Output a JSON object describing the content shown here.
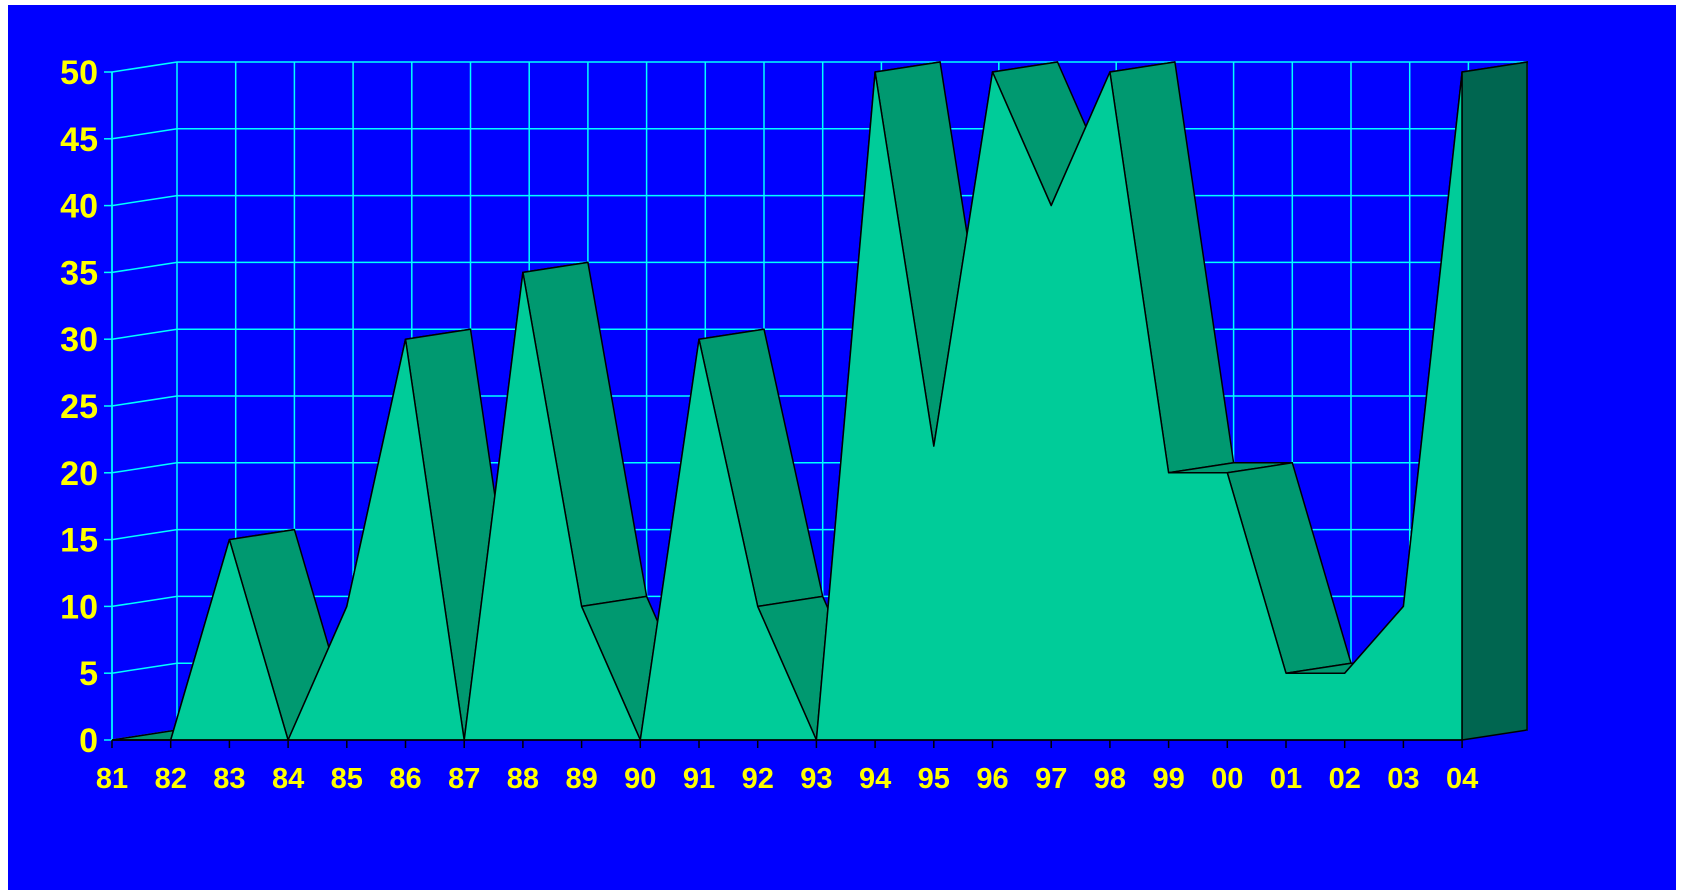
{
  "chart_data": {
    "type": "area",
    "title": "",
    "xlabel": "",
    "ylabel": "",
    "categories": [
      "81",
      "82",
      "83",
      "84",
      "85",
      "86",
      "87",
      "88",
      "89",
      "90",
      "91",
      "92",
      "93",
      "94",
      "95",
      "96",
      "97",
      "98",
      "99",
      "00",
      "01",
      "02",
      "03",
      "04"
    ],
    "series": [
      {
        "values": [
          0,
          0,
          15,
          0,
          10,
          30,
          0,
          35,
          10,
          0,
          30,
          10,
          0,
          50,
          22,
          50,
          40,
          50,
          20,
          20,
          5,
          5,
          10,
          50
        ]
      }
    ],
    "ylim": [
      0,
      50
    ],
    "yticks": [
      0,
      5,
      10,
      15,
      20,
      25,
      30,
      35,
      40,
      45,
      50
    ],
    "grid": true,
    "legend": "none",
    "three_d": true,
    "colors": {
      "background": "#0000ff",
      "grid": "#00ffff",
      "front_face": "#00cc99",
      "top_face": "#009970",
      "side_face": "#006650",
      "outline": "#000000",
      "tick_labels": "#ffff00"
    }
  }
}
